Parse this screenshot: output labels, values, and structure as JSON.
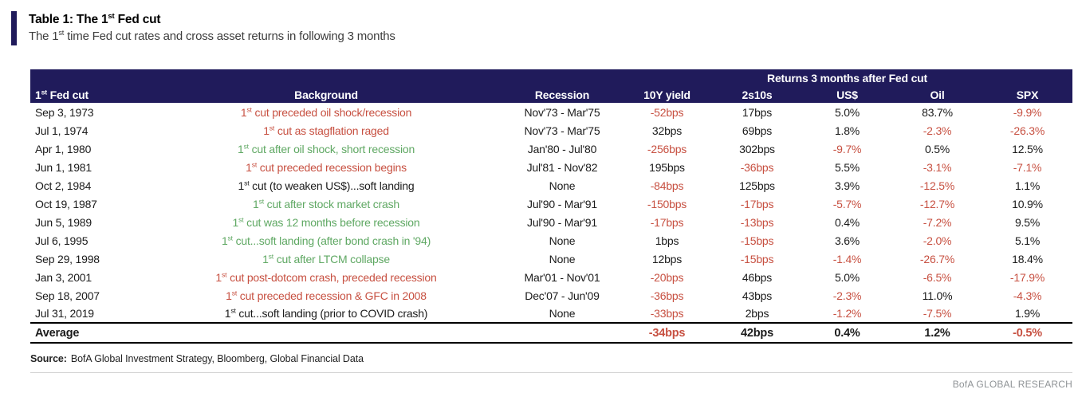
{
  "colors": {
    "navy": "#201b5b",
    "red": "#c75041",
    "green": "#5fa863",
    "muted": "#8f9396"
  },
  "header": {
    "title": "Table 1: The 1st Fed cut",
    "subtitle": "The 1st time Fed cut rates and cross asset returns in following 3 months"
  },
  "table": {
    "group_header": "Returns 3 months after Fed cut",
    "columns": [
      "1st Fed cut",
      "Background",
      "Recession",
      "10Y yield",
      "2s10s",
      "US$",
      "Oil",
      "SPX"
    ],
    "rows": [
      {
        "cells": [
          "Sep 3, 1973",
          "1st cut preceded oil shock/recession",
          "Nov'73 - Mar'75",
          "-52bps",
          "17bps",
          "5.0%",
          "83.7%",
          "-9.9%"
        ],
        "colors": [
          "k",
          "red",
          "k",
          "red",
          "k",
          "k",
          "k",
          "red"
        ]
      },
      {
        "cells": [
          "Jul 1, 1974",
          "1st cut as stagflation raged",
          "Nov'73 - Mar'75",
          "32bps",
          "69bps",
          "1.8%",
          "-2.3%",
          "-26.3%"
        ],
        "colors": [
          "k",
          "red",
          "k",
          "k",
          "k",
          "k",
          "red",
          "red"
        ]
      },
      {
        "cells": [
          "Apr 1, 1980",
          "1st cut after oil shock, short recession",
          "Jan'80 - Jul'80",
          "-256bps",
          "302bps",
          "-9.7%",
          "0.5%",
          "12.5%"
        ],
        "colors": [
          "k",
          "green",
          "k",
          "red",
          "k",
          "red",
          "k",
          "k"
        ]
      },
      {
        "cells": [
          "Jun 1, 1981",
          "1st cut preceded recession begins",
          "Jul'81 - Nov'82",
          "195bps",
          "-36bps",
          "5.5%",
          "-3.1%",
          "-7.1%"
        ],
        "colors": [
          "k",
          "red",
          "k",
          "k",
          "red",
          "k",
          "red",
          "red"
        ]
      },
      {
        "cells": [
          "Oct 2, 1984",
          "1st cut (to weaken US$)...soft landing",
          "None",
          "-84bps",
          "125bps",
          "3.9%",
          "-12.5%",
          "1.1%"
        ],
        "colors": [
          "k",
          "k",
          "k",
          "red",
          "k",
          "k",
          "red",
          "k"
        ]
      },
      {
        "cells": [
          "Oct 19, 1987",
          "1st cut after stock market crash",
          "Jul'90 - Mar'91",
          "-150bps",
          "-17bps",
          "-5.7%",
          "-12.7%",
          "10.9%"
        ],
        "colors": [
          "k",
          "green",
          "k",
          "red",
          "red",
          "red",
          "red",
          "k"
        ]
      },
      {
        "cells": [
          "Jun 5, 1989",
          "1st cut was 12 months before recession",
          "Jul'90 - Mar'91",
          "-17bps",
          "-13bps",
          "0.4%",
          "-7.2%",
          "9.5%"
        ],
        "colors": [
          "k",
          "green",
          "k",
          "red",
          "red",
          "k",
          "red",
          "k"
        ]
      },
      {
        "cells": [
          "Jul 6, 1995",
          "1st cut...soft landing (after bond crash in '94)",
          "None",
          "1bps",
          "-15bps",
          "3.6%",
          "-2.0%",
          "5.1%"
        ],
        "colors": [
          "k",
          "green",
          "k",
          "k",
          "red",
          "k",
          "red",
          "k"
        ]
      },
      {
        "cells": [
          "Sep 29, 1998",
          "1st cut after LTCM collapse",
          "None",
          "12bps",
          "-15bps",
          "-1.4%",
          "-26.7%",
          "18.4%"
        ],
        "colors": [
          "k",
          "green",
          "k",
          "k",
          "red",
          "red",
          "red",
          "k"
        ]
      },
      {
        "cells": [
          "Jan 3, 2001",
          "1st cut post-dotcom crash, preceded recession",
          "Mar'01 - Nov'01",
          "-20bps",
          "46bps",
          "5.0%",
          "-6.5%",
          "-17.9%"
        ],
        "colors": [
          "k",
          "red",
          "k",
          "red",
          "k",
          "k",
          "red",
          "red"
        ]
      },
      {
        "cells": [
          "Sep 18, 2007",
          "1st cut preceded recession & GFC in 2008",
          "Dec'07 - Jun'09",
          "-36bps",
          "43bps",
          "-2.3%",
          "11.0%",
          "-4.3%"
        ],
        "colors": [
          "k",
          "red",
          "k",
          "red",
          "k",
          "red",
          "k",
          "red"
        ]
      },
      {
        "cells": [
          "Jul 31, 2019",
          "1st cut...soft landing (prior to COVID crash)",
          "None",
          "-33bps",
          "2bps",
          "-1.2%",
          "-7.5%",
          "1.9%"
        ],
        "colors": [
          "k",
          "k",
          "k",
          "red",
          "k",
          "red",
          "red",
          "k"
        ]
      }
    ],
    "average": {
      "label": "Average",
      "cells": [
        "-34bps",
        "42bps",
        "0.4%",
        "1.2%",
        "-0.5%"
      ],
      "colors": [
        "red",
        "k",
        "k",
        "k",
        "red"
      ]
    }
  },
  "footer": {
    "source_label": "Source:",
    "source_text": "BofA Global Investment Strategy, Bloomberg, Global Financial Data",
    "brand": "BofA GLOBAL RESEARCH"
  }
}
